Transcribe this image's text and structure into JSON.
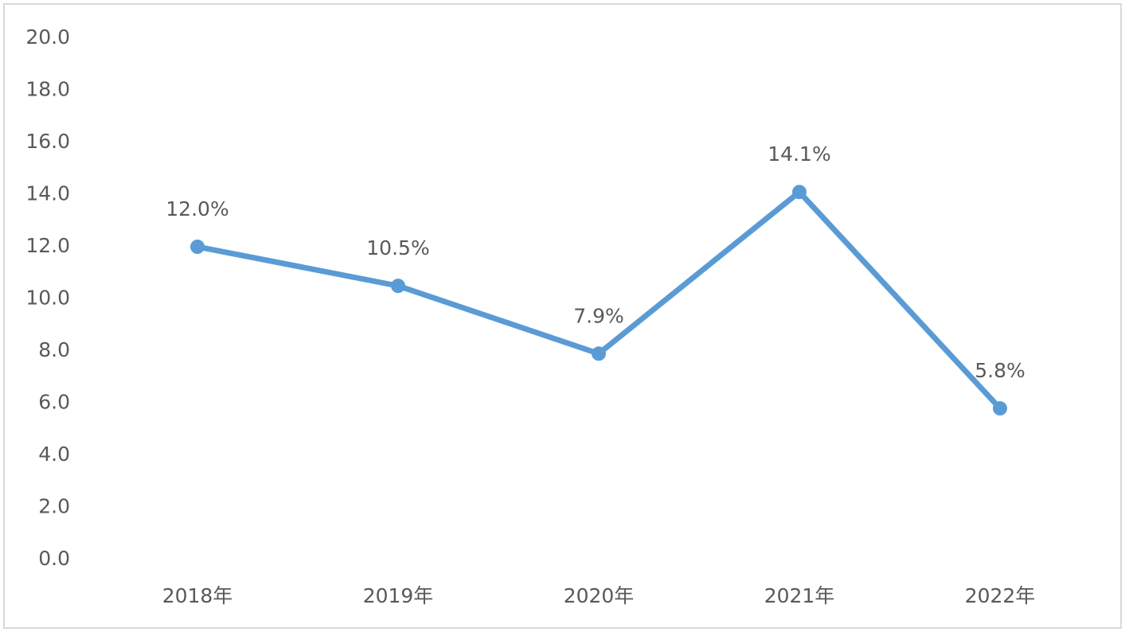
{
  "chart_data": {
    "type": "line",
    "categories": [
      "2018年",
      "2019年",
      "2020年",
      "2021年",
      "2022年"
    ],
    "series": [
      {
        "color": "#5b9bd5",
        "values": [
          12.0,
          10.5,
          7.9,
          14.1,
          5.8
        ],
        "value_labels": [
          "12.0%",
          "10.5%",
          "7.9%",
          "14.1%",
          "5.8%"
        ]
      }
    ],
    "ylim": [
      0,
      20
    ],
    "yticks": [
      {
        "value": 0,
        "label": "0.0"
      },
      {
        "value": 2,
        "label": "2.0"
      },
      {
        "value": 4,
        "label": "4.0"
      },
      {
        "value": 6,
        "label": "6.0"
      },
      {
        "value": 8,
        "label": "8.0"
      },
      {
        "value": 10,
        "label": "10.0"
      },
      {
        "value": 12,
        "label": "12.0"
      },
      {
        "value": 14,
        "label": "14.0"
      },
      {
        "value": 16,
        "label": "16.0"
      },
      {
        "value": 18,
        "label": "18.0"
      },
      {
        "value": 20,
        "label": "20.0"
      }
    ],
    "grid": false
  }
}
